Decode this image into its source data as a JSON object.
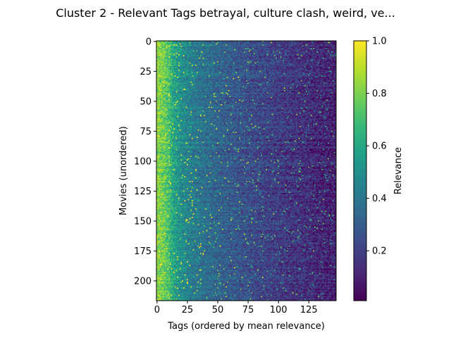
{
  "chart_data": {
    "type": "heatmap",
    "title": "Cluster 2 - Relevant Tags betrayal, culture clash, weird, ve...",
    "xlabel": "Tags (ordered by mean relevance)",
    "ylabel": "Movies (unordered)",
    "n_rows": 217,
    "n_cols": 148,
    "x_ticks": [
      0,
      25,
      50,
      75,
      100,
      125
    ],
    "y_ticks": [
      0,
      25,
      50,
      75,
      100,
      125,
      150,
      175,
      200
    ],
    "xlim": [
      -0.5,
      147.5
    ],
    "ylim": [
      216.5,
      -0.5
    ],
    "colorbar": {
      "label": "Relevance",
      "min": 0.01,
      "max": 1.0,
      "ticks": [
        0.2,
        0.4,
        0.6,
        0.8,
        1.0
      ],
      "colormap": "viridis"
    },
    "column_mean_profile": {
      "tag_index": [
        0,
        5,
        10,
        13,
        20,
        30,
        50,
        75,
        100,
        125,
        147
      ],
      "approx_mean_relevance": [
        0.82,
        0.78,
        0.7,
        0.6,
        0.5,
        0.42,
        0.33,
        0.25,
        0.19,
        0.14,
        0.1
      ]
    }
  },
  "colors": {
    "viridis": [
      "#440154",
      "#482878",
      "#3e4989",
      "#31688e",
      "#26828e",
      "#1f9e89",
      "#35b779",
      "#6ece58",
      "#b5de2b",
      "#fde725"
    ]
  }
}
